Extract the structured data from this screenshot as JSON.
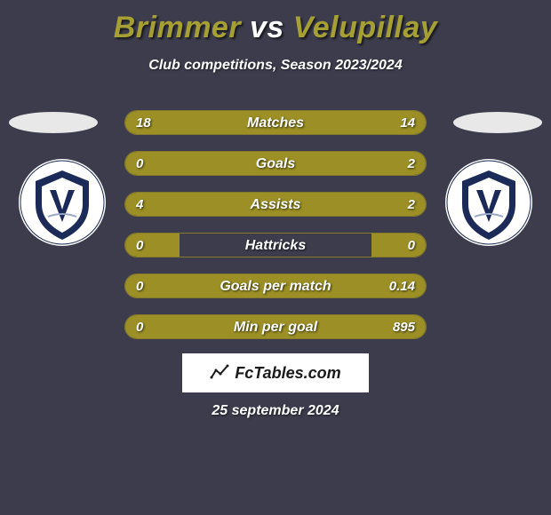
{
  "title": {
    "player1": "Brimmer",
    "vs": " vs ",
    "player2": "Velupillay",
    "color_p1": "#a6a034",
    "color_p2": "#a6a034"
  },
  "subtitle": "Club competitions, Season 2023/2024",
  "stats": [
    {
      "label": "Matches",
      "left_val": "18",
      "right_val": "14",
      "left_pct": 56,
      "right_pct": 44
    },
    {
      "label": "Goals",
      "left_val": "0",
      "right_val": "2",
      "left_pct": 18,
      "right_pct": 82
    },
    {
      "label": "Assists",
      "left_val": "4",
      "right_val": "2",
      "left_pct": 66,
      "right_pct": 34
    },
    {
      "label": "Hattricks",
      "left_val": "0",
      "right_val": "0",
      "left_pct": 18,
      "right_pct": 18
    },
    {
      "label": "Goals per match",
      "left_val": "0",
      "right_val": "0.14",
      "left_pct": 0,
      "right_pct": 100
    },
    {
      "label": "Min per goal",
      "left_val": "0",
      "right_val": "895",
      "left_pct": 0,
      "right_pct": 100
    }
  ],
  "bar_colors": {
    "left": "#9b8f25",
    "right": "#9b8f25"
  },
  "brand": "FcTables.com",
  "date": "25 september 2024",
  "club": {
    "name": "MELBOURNE VICTORY",
    "bg": "#ffffff",
    "shield": "#1b2a57",
    "accent": "#9aa6c6"
  }
}
